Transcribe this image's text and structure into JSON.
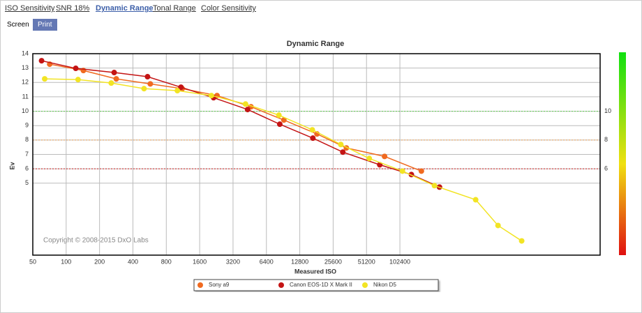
{
  "tabs": [
    "ISO Sensitivity",
    "SNR 18%",
    "Dynamic Range",
    "Tonal Range",
    "Color Sensitivity"
  ],
  "buttons": [
    "Screen",
    "Print"
  ],
  "chart_data": {
    "type": "line",
    "title": "Dynamic Range",
    "xlabel": "Measured ISO",
    "ylabel": "Ev",
    "copyright": "Copyright © 2008-2015 DxO Labs",
    "xscale": "log",
    "grid": true,
    "xlim": [
      50,
      6553600
    ],
    "xticks": [
      50,
      100,
      200,
      400,
      800,
      1600,
      3200,
      6400,
      12800,
      25600,
      51200,
      102400
    ],
    "ylim": [
      0,
      14
    ],
    "yticks": [
      5,
      6,
      7,
      8,
      9,
      10,
      11,
      12,
      13,
      14
    ],
    "reference_lines": [
      {
        "value": 10,
        "color": "#5ccf4c"
      },
      {
        "value": 8,
        "color": "#f0a050"
      },
      {
        "value": 6,
        "color": "#d02020"
      }
    ],
    "series": [
      {
        "name": "Sony a9",
        "color": "#f06a20",
        "x": [
          71,
          143,
          283,
          574,
          1115,
          2296,
          4650,
          9200,
          18300,
          33700,
          74500,
          160000
        ],
        "values": [
          13.27,
          12.83,
          12.25,
          11.9,
          11.57,
          11.09,
          10.31,
          9.39,
          8.42,
          7.45,
          6.86,
          5.84
        ]
      },
      {
        "name": "Canon  EOS-1D X Mark II",
        "color": "#c41414",
        "x": [
          60,
          122,
          271,
          542,
          1085,
          2135,
          4330,
          8450,
          16800,
          31300,
          67400,
          130000,
          233000
        ],
        "values": [
          13.51,
          12.98,
          12.69,
          12.4,
          11.67,
          10.94,
          10.12,
          9.1,
          8.13,
          7.16,
          6.28,
          5.6,
          4.73
        ]
      },
      {
        "name": "Nikon D5",
        "color": "#f2e424",
        "x": [
          64,
          128,
          255,
          504,
          1007,
          2040,
          4150,
          8300,
          16600,
          30000,
          54200,
          108000,
          210000,
          494000,
          786000,
          1285000
        ],
        "values": [
          12.25,
          12.2,
          11.96,
          11.57,
          11.43,
          11.09,
          10.5,
          9.73,
          8.71,
          7.69,
          6.72,
          5.84,
          4.83,
          3.85,
          2.06,
          0.99
        ]
      }
    ]
  }
}
